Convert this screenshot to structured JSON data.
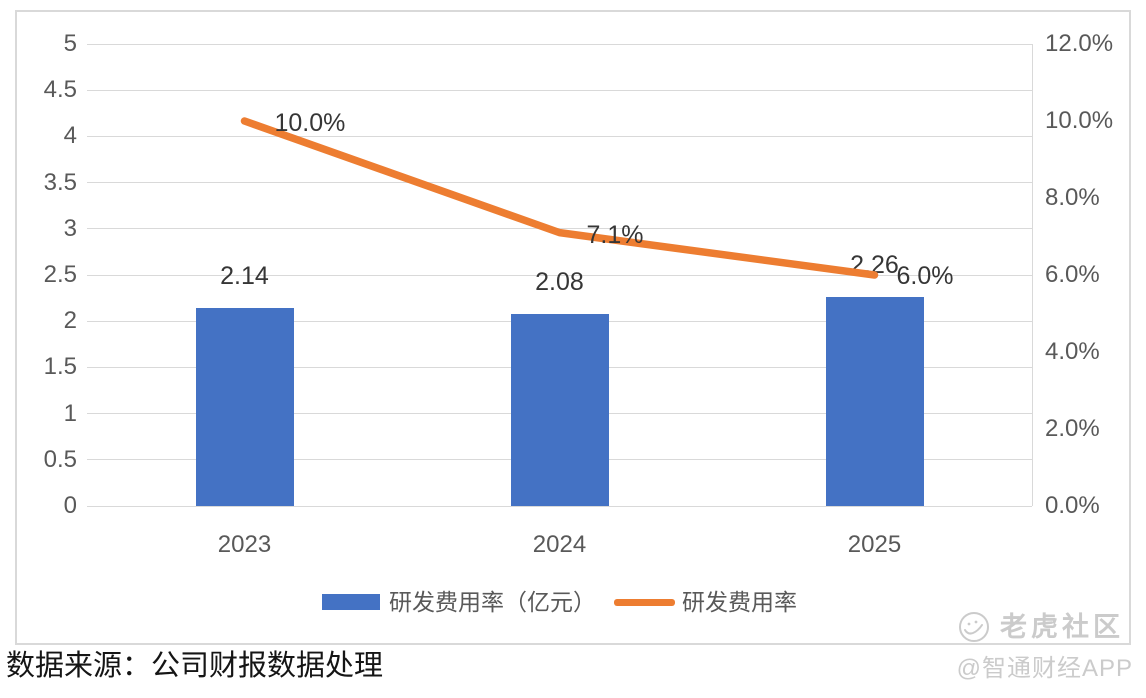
{
  "chart_data": {
    "type": "combo",
    "categories": [
      "2023",
      "2024",
      "2025"
    ],
    "series": [
      {
        "name": "研发费用率（亿元）",
        "type": "bar",
        "axis": "left",
        "values": [
          2.14,
          2.08,
          2.26
        ],
        "labels": [
          "2.14",
          "2.08",
          "2.26"
        ]
      },
      {
        "name": "研发费用率",
        "type": "line",
        "axis": "right",
        "values": [
          10.0,
          7.1,
          6.0
        ],
        "labels": [
          "10.0%",
          "7.1%",
          "6.0%"
        ]
      }
    ],
    "left_axis": {
      "min": 0,
      "max": 5,
      "ticks": [
        "0",
        "0.5",
        "1",
        "1.5",
        "2",
        "2.5",
        "3",
        "3.5",
        "4",
        "4.5",
        "5"
      ]
    },
    "right_axis": {
      "min": 0,
      "max": 12,
      "ticks": [
        "0.0%",
        "2.0%",
        "4.0%",
        "6.0%",
        "8.0%",
        "10.0%",
        "12.0%"
      ]
    },
    "grid": true,
    "legend_position": "bottom",
    "title": ""
  },
  "legend": {
    "bar_label": "研发费用率（亿元）",
    "line_label": "研发费用率"
  },
  "footer": {
    "source": "数据来源：公司财报数据处理"
  },
  "watermark": {
    "community": "老虎社区",
    "app": "@智通财经APP"
  },
  "colors": {
    "bar": "#4472C4",
    "line": "#ED7D31",
    "grid": "#D9D9D9",
    "border": "#D9D9D9",
    "axis_text": "#595959",
    "label_text": "#363636",
    "watermark": "#CBCBCB"
  }
}
